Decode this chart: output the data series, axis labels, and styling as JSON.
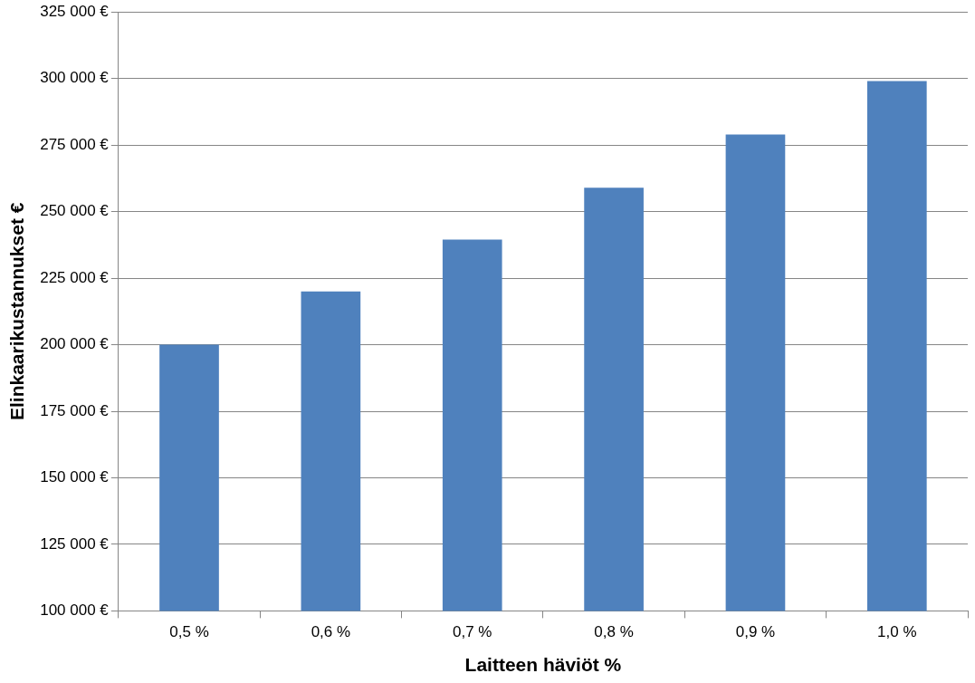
{
  "chart_data": {
    "type": "bar",
    "xlabel": "Laitteen häviöt %",
    "ylabel": "Elinkaarikustannukset €",
    "categories": [
      "0,5 %",
      "0,6 %",
      "0,7 %",
      "0,8 %",
      "0,9 %",
      "1,0 %"
    ],
    "values": [
      200000,
      220000,
      239500,
      259000,
      279000,
      299000
    ],
    "color": "#4f81bd",
    "ylim": [
      100000,
      325000
    ],
    "yticks": [
      {
        "value": 100000,
        "label": "100 000 €"
      },
      {
        "value": 125000,
        "label": "125 000 €"
      },
      {
        "value": 150000,
        "label": "150 000 €"
      },
      {
        "value": 175000,
        "label": "175 000 €"
      },
      {
        "value": 200000,
        "label": "200 000 €"
      },
      {
        "value": 225000,
        "label": "225 000 €"
      },
      {
        "value": 250000,
        "label": "250 000 €"
      },
      {
        "value": 275000,
        "label": "275 000 €"
      },
      {
        "value": 300000,
        "label": "300 000 €"
      },
      {
        "value": 325000,
        "label": "325 000 €"
      }
    ],
    "grid": "y",
    "legend": false
  }
}
